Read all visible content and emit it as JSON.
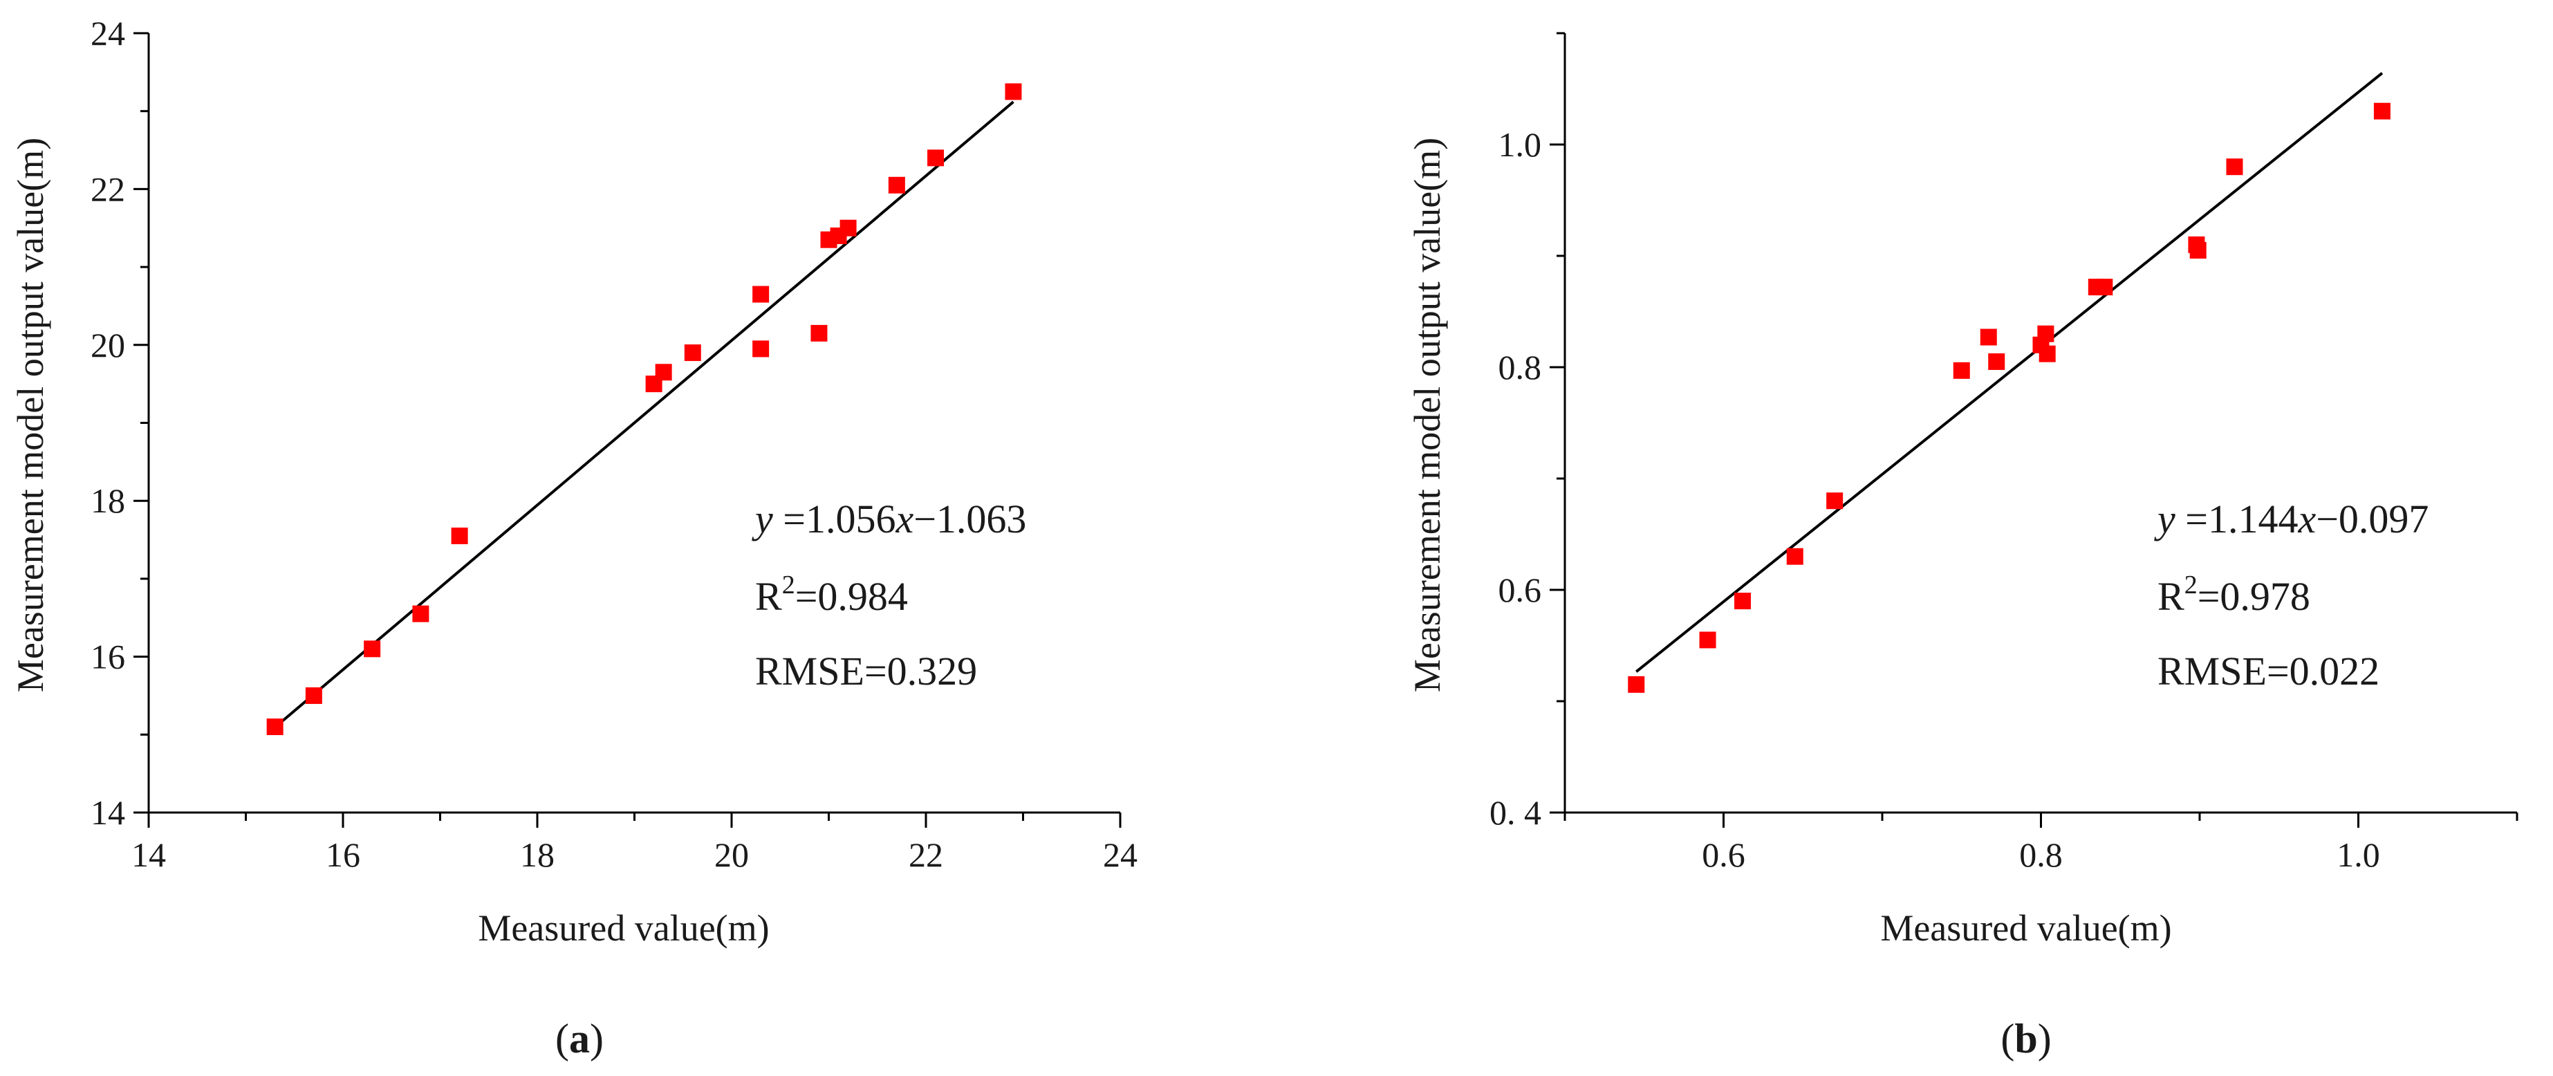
{
  "chart_data": [
    {
      "type": "scatter",
      "panel_label": "(a)",
      "panel_letter": "a",
      "xlabel": "Measured value(m)",
      "ylabel": "Measurement model output value(m)",
      "xlim": [
        14,
        24
      ],
      "ylim": [
        14,
        24
      ],
      "xticks": [
        14,
        16,
        18,
        20,
        22,
        24
      ],
      "yticks": [
        14,
        16,
        18,
        20,
        22,
        24
      ],
      "xtick_labels": [
        "14",
        "16",
        "18",
        "20",
        "22",
        "24"
      ],
      "ytick_labels": [
        "14",
        "16",
        "18",
        "20",
        "22",
        "24"
      ],
      "marker_color": "#ff0000",
      "line_color": "#000000",
      "points": [
        {
          "x": 15.3,
          "y": 15.1
        },
        {
          "x": 15.7,
          "y": 15.5
        },
        {
          "x": 16.3,
          "y": 16.1
        },
        {
          "x": 16.8,
          "y": 16.55
        },
        {
          "x": 17.2,
          "y": 17.55
        },
        {
          "x": 19.2,
          "y": 19.5
        },
        {
          "x": 19.3,
          "y": 19.65
        },
        {
          "x": 19.6,
          "y": 19.9
        },
        {
          "x": 20.3,
          "y": 20.65
        },
        {
          "x": 20.3,
          "y": 19.95
        },
        {
          "x": 20.9,
          "y": 20.15
        },
        {
          "x": 21.0,
          "y": 21.35
        },
        {
          "x": 21.1,
          "y": 21.4
        },
        {
          "x": 21.2,
          "y": 21.5
        },
        {
          "x": 21.7,
          "y": 22.05
        },
        {
          "x": 22.1,
          "y": 22.4
        },
        {
          "x": 22.9,
          "y": 23.25
        }
      ],
      "fit": {
        "slope": 1.056,
        "intercept": -1.063,
        "x_range": [
          15.3,
          22.9
        ]
      },
      "annotations": {
        "eq_y": "y",
        "eq_rest": " =1.056",
        "eq_x": "x",
        "eq_tail": "−1.063",
        "r2_prefix": "R",
        "r2_sup": "2",
        "r2_value": "=0.984",
        "rmse": "RMSE=0.329"
      }
    },
    {
      "type": "scatter",
      "panel_label": "(b)",
      "panel_letter": "b",
      "xlabel": "Measured value(m)",
      "ylabel": "Measurement model output value(m)",
      "xlim": [
        0.5,
        1.1
      ],
      "ylim": [
        0.4,
        1.1
      ],
      "xticks": [
        0.6,
        0.8,
        1.0
      ],
      "yticks": [
        0.4,
        0.6,
        0.8,
        1.0
      ],
      "xtick_labels": [
        "0.6",
        "0.8",
        "1.0"
      ],
      "ytick_labels": [
        "0. 4",
        "0.6",
        "0.8",
        "1.0"
      ],
      "marker_color": "#ff0000",
      "line_color": "#000000",
      "points": [
        {
          "x": 0.545,
          "y": 0.515
        },
        {
          "x": 0.59,
          "y": 0.555
        },
        {
          "x": 0.612,
          "y": 0.59
        },
        {
          "x": 0.645,
          "y": 0.63
        },
        {
          "x": 0.67,
          "y": 0.68
        },
        {
          "x": 0.75,
          "y": 0.797
        },
        {
          "x": 0.767,
          "y": 0.827
        },
        {
          "x": 0.772,
          "y": 0.805
        },
        {
          "x": 0.8,
          "y": 0.82
        },
        {
          "x": 0.803,
          "y": 0.83
        },
        {
          "x": 0.804,
          "y": 0.812
        },
        {
          "x": 0.835,
          "y": 0.872
        },
        {
          "x": 0.84,
          "y": 0.872
        },
        {
          "x": 0.898,
          "y": 0.91
        },
        {
          "x": 0.899,
          "y": 0.905
        },
        {
          "x": 0.922,
          "y": 0.98
        },
        {
          "x": 1.015,
          "y": 1.03
        }
      ],
      "fit": {
        "slope": 1.144,
        "intercept": -0.097,
        "x_range": [
          0.545,
          1.015
        ]
      },
      "annotations": {
        "eq_y": "y",
        "eq_rest": " =1.144",
        "eq_x": "x",
        "eq_tail": "−0.097",
        "r2_prefix": "R",
        "r2_sup": "2",
        "r2_value": "=0.978",
        "rmse": "RMSE=0.022"
      }
    }
  ]
}
